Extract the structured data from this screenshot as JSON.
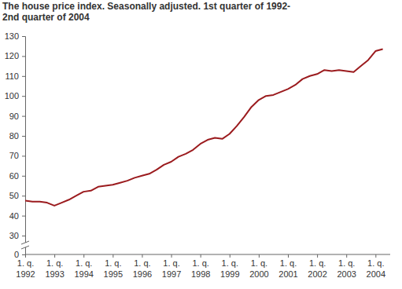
{
  "chart_data": {
    "type": "line",
    "title": [
      "The house price index. Seasonally adjusted. 1st quarter of 1992-",
      "2nd quarter of 2004"
    ],
    "categories": [
      "1. q. 1992",
      null,
      null,
      null,
      "1. q. 1993",
      null,
      null,
      null,
      "1. q. 1994",
      null,
      null,
      null,
      "1. q. 1995",
      null,
      null,
      null,
      "1. q. 1996",
      null,
      null,
      null,
      "1. q. 1997",
      null,
      null,
      null,
      "1. q. 1998",
      null,
      null,
      null,
      "1. q. 1999",
      null,
      null,
      null,
      "1. q. 2000",
      null,
      null,
      null,
      "1. q. 2001",
      null,
      null,
      null,
      "1. q. 2002",
      null,
      null,
      null,
      "1. q. 2003",
      null,
      null,
      null,
      "1. q. 2004",
      null
    ],
    "values": [
      47.5,
      47,
      47,
      46.5,
      45,
      46.5,
      48,
      50,
      52,
      52.5,
      54.5,
      55,
      55.5,
      56.5,
      57.5,
      59,
      60,
      61,
      63,
      65.5,
      67,
      69.5,
      71,
      73,
      76,
      78,
      79,
      78.5,
      81,
      85,
      89.5,
      94.5,
      98,
      100,
      100.5,
      102,
      103.5,
      105.5,
      108.5,
      110,
      111,
      113,
      112.5,
      113,
      112.5,
      112,
      115,
      118,
      122.5,
      123.5
    ],
    "color": "#9b1b1e",
    "ylim": [
      0,
      130
    ],
    "yticks": [
      0,
      30,
      40,
      50,
      60,
      70,
      80,
      90,
      100,
      110,
      120,
      130
    ],
    "grid": false
  }
}
